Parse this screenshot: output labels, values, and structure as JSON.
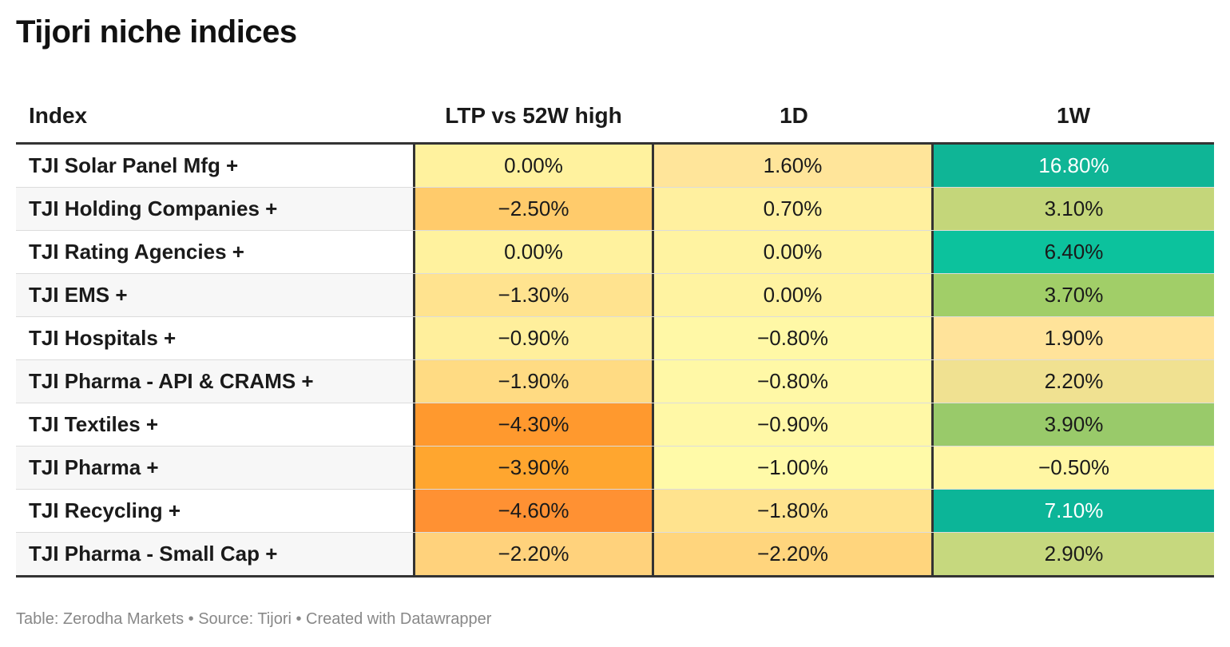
{
  "title": "Tijori niche indices",
  "footer": "Table: Zerodha Markets • Source: Tijori • Created with Datawrapper",
  "chart_data": {
    "type": "table",
    "title": "Tijori niche indices",
    "columns": [
      "Index",
      "LTP vs 52W high",
      "1D",
      "1W"
    ],
    "rows": [
      {
        "index": "TJI Solar Panel Mfg +",
        "ltp": "0.00%",
        "d1": "1.60%",
        "w1": "16.80%"
      },
      {
        "index": "TJI Holding Companies +",
        "ltp": "−2.50%",
        "d1": "0.70%",
        "w1": "3.10%"
      },
      {
        "index": "TJI Rating Agencies +",
        "ltp": "0.00%",
        "d1": "0.00%",
        "w1": "6.40%"
      },
      {
        "index": "TJI EMS +",
        "ltp": "−1.30%",
        "d1": "0.00%",
        "w1": "3.70%"
      },
      {
        "index": "TJI Hospitals +",
        "ltp": "−0.90%",
        "d1": "−0.80%",
        "w1": "1.90%"
      },
      {
        "index": "TJI Pharma - API & CRAMS +",
        "ltp": "−1.90%",
        "d1": "−0.80%",
        "w1": "2.20%"
      },
      {
        "index": "TJI Textiles +",
        "ltp": "−4.30%",
        "d1": "−0.90%",
        "w1": "3.90%"
      },
      {
        "index": "TJI Pharma +",
        "ltp": "−3.90%",
        "d1": "−1.00%",
        "w1": "−0.50%"
      },
      {
        "index": "TJI Recycling +",
        "ltp": "−4.60%",
        "d1": "−1.80%",
        "w1": "7.10%"
      },
      {
        "index": "TJI Pharma - Small Cap +",
        "ltp": "−2.20%",
        "d1": "−2.20%",
        "w1": "2.90%"
      }
    ],
    "cell_colors": [
      {
        "ltp": "#fff29e",
        "d1": "#ffe59a",
        "w1": "#0fb596",
        "w1_text": "#ffffff"
      },
      {
        "ltp": "#ffcb6b",
        "d1": "#fff09f",
        "w1": "#c4d67a",
        "w1_text": "#1a1a1a"
      },
      {
        "ltp": "#fff29e",
        "d1": "#fff3a1",
        "w1": "#0cc29d",
        "w1_text": "#1a1a1a"
      },
      {
        "ltp": "#ffe38f",
        "d1": "#fff3a1",
        "w1": "#a1ce68",
        "w1_text": "#1a1a1a"
      },
      {
        "ltp": "#ffef9c",
        "d1": "#fff8a6",
        "w1": "#ffe39a",
        "w1_text": "#1a1a1a"
      },
      {
        "ltp": "#ffdb83",
        "d1": "#fff8a6",
        "w1": "#f0e191",
        "w1_text": "#1a1a1a"
      },
      {
        "ltp": "#ff992e",
        "d1": "#fff8a6",
        "w1": "#99ca6a",
        "w1_text": "#1a1a1a"
      },
      {
        "ltp": "#ffa62f",
        "d1": "#fffaa8",
        "w1": "#fff6a3",
        "w1_text": "#1a1a1a"
      },
      {
        "ltp": "#ff9133",
        "d1": "#ffe38e",
        "w1": "#0cb598",
        "w1_text": "#ffffff"
      },
      {
        "ltp": "#ffd27c",
        "d1": "#ffd57d",
        "w1": "#c6d87e",
        "w1_text": "#1a1a1a"
      }
    ]
  }
}
